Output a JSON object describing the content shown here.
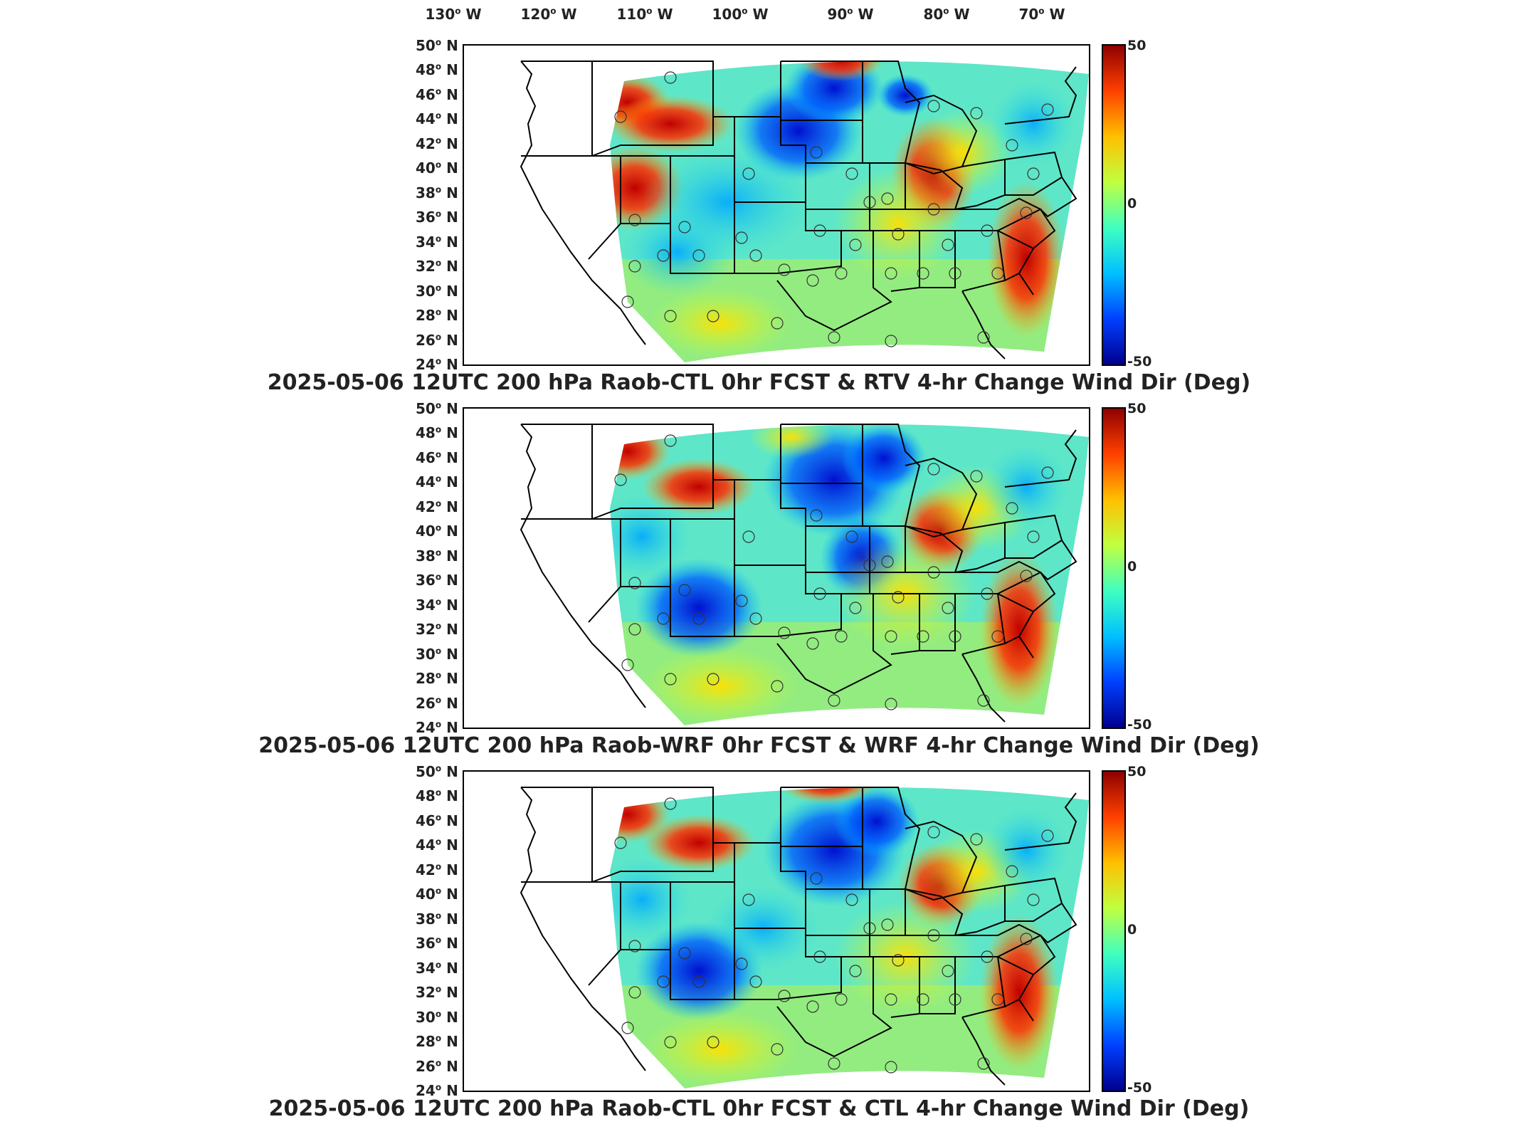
{
  "axis": {
    "lon_labels": [
      "130",
      "120",
      "110",
      "100",
      "90",
      "80",
      "70"
    ],
    "lon_suffix": "W",
    "lat_labels": [
      "50",
      "48",
      "46",
      "44",
      "42",
      "40",
      "38",
      "36",
      "34",
      "32",
      "30",
      "28",
      "26",
      "24"
    ],
    "lat_suffix": "N"
  },
  "colorbar": {
    "max_label": "50",
    "mid_label": "0",
    "min_label": "-50",
    "colors": [
      "#00008f",
      "#0040ff",
      "#00c0ff",
      "#40ffbf",
      "#c0ff40",
      "#ffc000",
      "#ff4000",
      "#8f0000"
    ]
  },
  "panels": [
    {
      "title": "2025-05-06 12UTC 200 hPa Raob-CTL 0hr FCST & RTV 4-hr Change Wind Dir (Deg)"
    },
    {
      "title": "2025-05-06 12UTC 200 hPa Raob-WRF 0hr FCST & WRF 4-hr Change Wind Dir (Deg)"
    },
    {
      "title": "2025-05-06 12UTC 200 hPa Raob-CTL 0hr FCST & CTL 4-hr Change Wind Dir (Deg)"
    }
  ]
}
